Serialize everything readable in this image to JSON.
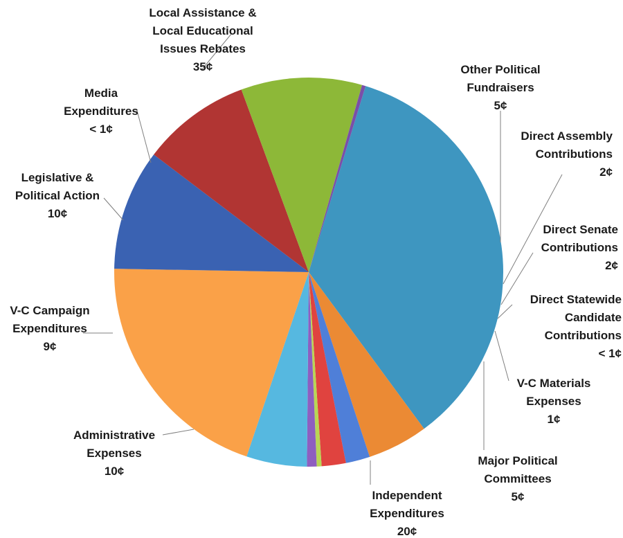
{
  "chart_data": {
    "type": "pie",
    "title": "",
    "slices": [
      {
        "name": "Local Assistance & Local Educational Issues Rebates",
        "value": 35,
        "value_label": "35¢",
        "label_lines": [
          "Local Assistance &",
          "Local Educational",
          "Issues Rebates",
          "35¢"
        ],
        "color": "#3E96C0"
      },
      {
        "name": "Other Political Fundraisers",
        "value": 5,
        "value_label": "5¢",
        "label_lines": [
          "Other Political",
          "Fundraisers",
          "5¢"
        ],
        "color": "#EB8A34"
      },
      {
        "name": "Direct Assembly Contributions",
        "value": 2,
        "value_label": "2¢",
        "label_lines": [
          "Direct Assembly",
          "Contributions",
          "2¢"
        ],
        "color": "#4F7FD8"
      },
      {
        "name": "Direct Senate Contributions",
        "value": 2,
        "value_label": "2¢",
        "label_lines": [
          "Direct Senate",
          "Contributions",
          "2¢"
        ],
        "color": "#E0433F"
      },
      {
        "name": "Direct Statewide Candidate Contributions",
        "value": 0.4,
        "value_label": "< 1¢",
        "label_lines": [
          "Direct Statewide",
          "Candidate",
          "Contributions",
          "< 1¢"
        ],
        "color": "#B9D655"
      },
      {
        "name": "V-C Materials Expenses",
        "value": 0.8,
        "value_label": "1¢",
        "label_lines": [
          "V-C  Materials",
          "Expenses",
          "1¢"
        ],
        "color": "#8E5FC0"
      },
      {
        "name": "Major Political Committees",
        "value": 5,
        "value_label": "5¢",
        "label_lines": [
          "Major Political",
          "Committees",
          "5¢"
        ],
        "color": "#56B8E0"
      },
      {
        "name": "Independent Expenditures",
        "value": 20,
        "value_label": "20¢",
        "label_lines": [
          "Independent",
          "Expenditures",
          "20¢"
        ],
        "color": "#FAA148"
      },
      {
        "name": "Administrative Expenses",
        "value": 10,
        "value_label": "10¢",
        "label_lines": [
          "Administrative",
          "Expenses",
          "10¢"
        ],
        "color": "#3A62B2"
      },
      {
        "name": "V-C Campaign Expenditures",
        "value": 9,
        "value_label": "9¢",
        "label_lines": [
          "V-C Campaign",
          "Expenditures",
          "9¢"
        ],
        "color": "#B13533"
      },
      {
        "name": "Legislative & Political Action",
        "value": 10,
        "value_label": "10¢",
        "label_lines": [
          "Legislative &",
          "Political Action",
          "10¢"
        ],
        "color": "#8DB838"
      },
      {
        "name": "Media Expenditures",
        "value": 0.3,
        "value_label": "< 1¢",
        "label_lines": [
          "Media",
          "Expenditures",
          "< 1¢"
        ],
        "color": "#7A4FA8"
      }
    ]
  }
}
